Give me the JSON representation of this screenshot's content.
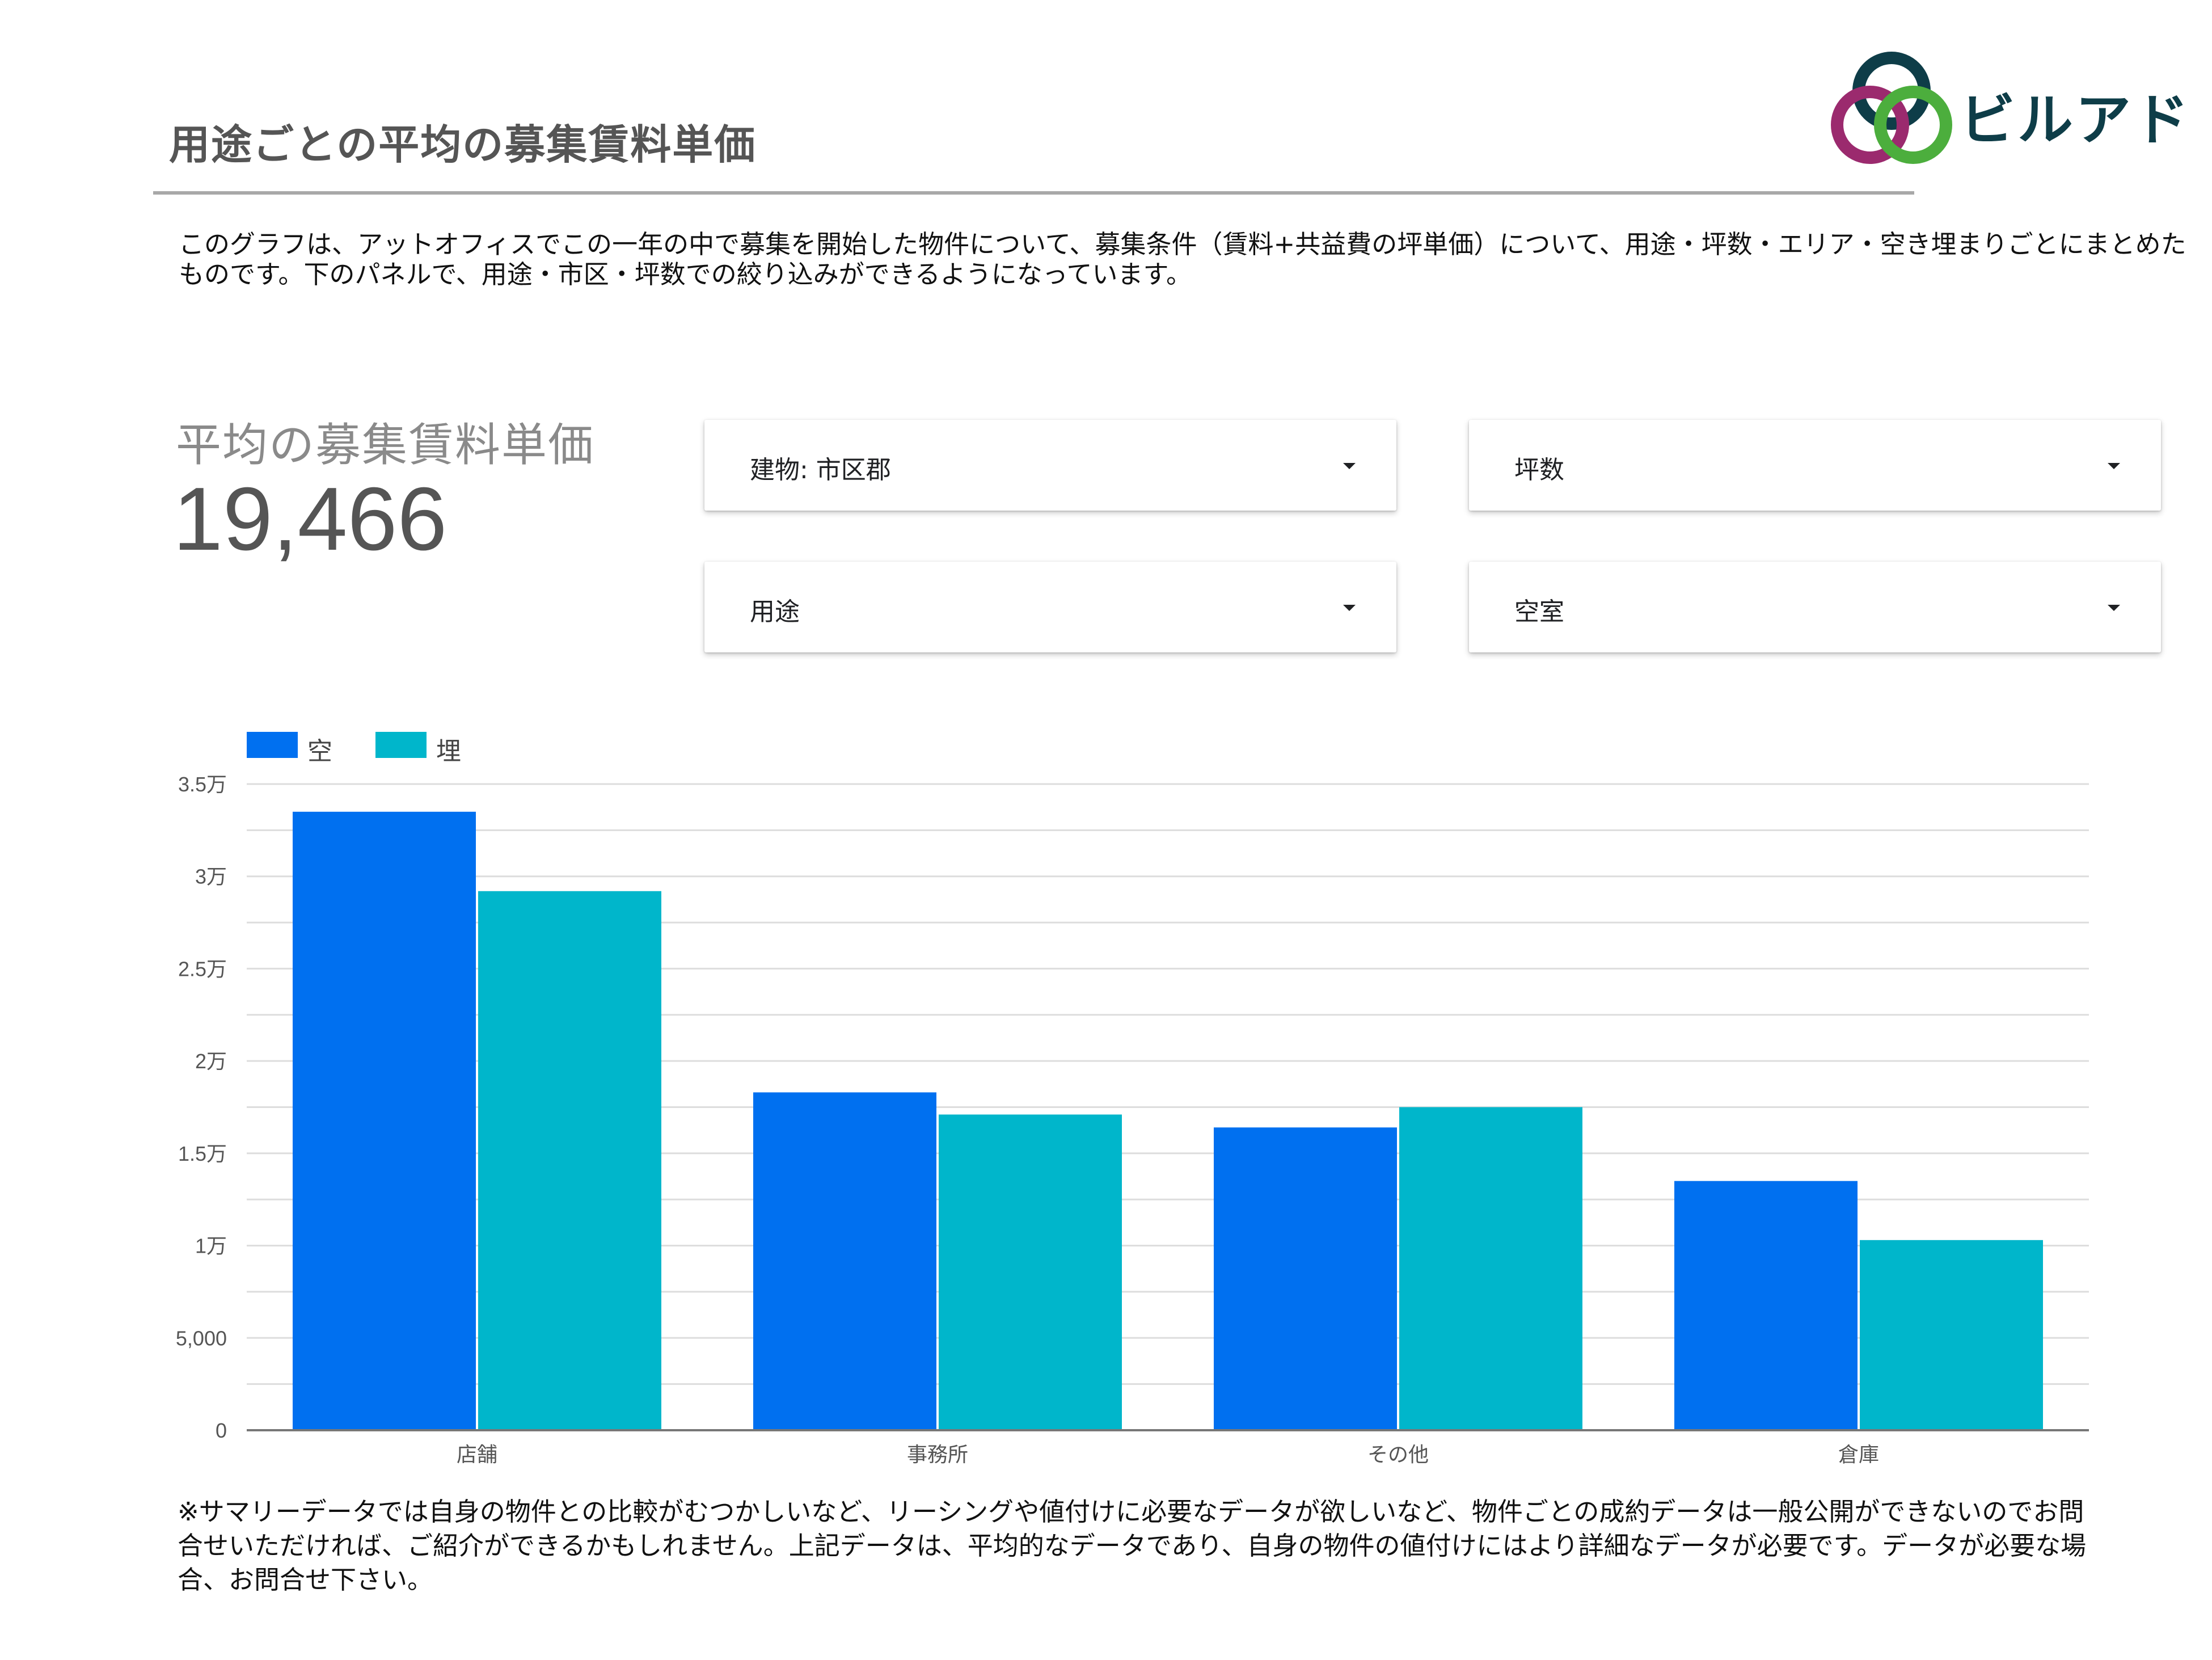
{
  "page": {
    "title": "用途ごとの平均の募集賃料単価",
    "description": "このグラフは、アットオフィスでこの一年の中で募集を開始した物件について、募集条件（賃料+共益費の坪単価）について、用途・坪数・エリア・空き埋まりごとにまとめたものです。下のパネルで、用途・市区・坪数での絞り込みができるようになっています。",
    "footnote": "※サマリーデータでは自身の物件との比較がむつかしいなど、リーシングや値付けに必要なデータが欲しいなど、物件ごとの成約データは一般公開ができないのでお問合せいただければ、ご紹介ができるかもしれません。上記データは、平均的なデータであり、自身の物件の値付けにはより詳細なデータが必要です。データが必要な場合、お問合せ下さい。"
  },
  "logo": {
    "text": "ビルアド",
    "colors": [
      "#0e3d48",
      "#4cae3d",
      "#9b2a6e"
    ]
  },
  "kpi": {
    "label": "平均の募集賃料単価",
    "value": "19,466"
  },
  "filters": [
    {
      "label": "建物: 市区郡"
    },
    {
      "label": "坪数"
    },
    {
      "label": "用途"
    },
    {
      "label": "空室"
    }
  ],
  "chart_data": {
    "type": "bar",
    "categories": [
      "店舗",
      "事務所",
      "その他",
      "倉庫"
    ],
    "series": [
      {
        "name": "空",
        "color": "#0070f0",
        "values": [
          33500,
          18300,
          16400,
          13500
        ]
      },
      {
        "name": "埋",
        "color": "#00b6cb",
        "values": [
          29200,
          17100,
          17500,
          10300
        ]
      }
    ],
    "ylim": [
      0,
      35000
    ],
    "yticks": [
      {
        "value": 0,
        "label": "0"
      },
      {
        "value": 5000,
        "label": "5,000"
      },
      {
        "value": 10000,
        "label": "1万"
      },
      {
        "value": 15000,
        "label": "1.5万"
      },
      {
        "value": 20000,
        "label": "2万"
      },
      {
        "value": 25000,
        "label": "2.5万"
      },
      {
        "value": 30000,
        "label": "3万"
      },
      {
        "value": 35000,
        "label": "3.5万"
      }
    ],
    "grid": true,
    "legend": "top-left"
  }
}
